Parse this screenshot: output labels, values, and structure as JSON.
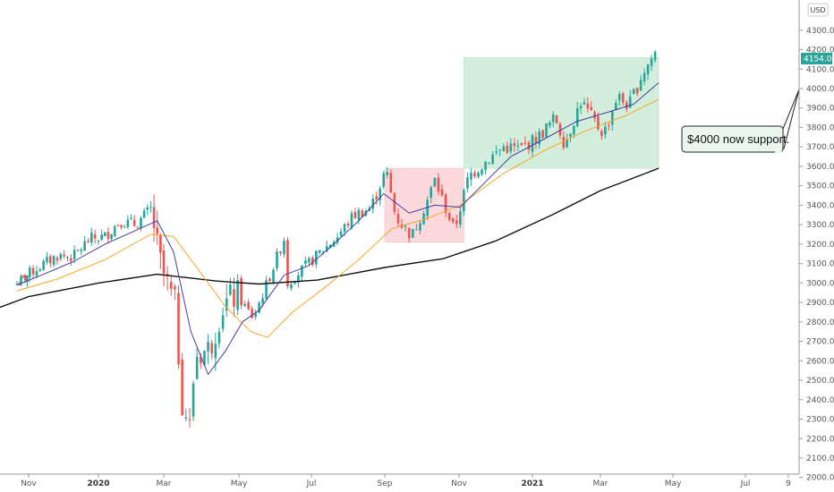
{
  "chart_data": {
    "type": "candlestick",
    "currency": "USD",
    "current_price": "4154.05",
    "colors": {
      "up": "#26a69a",
      "down": "#ef5350",
      "ma_short": "#3f3fa0",
      "ma_mid": "#f5a623",
      "ma_long": "#111111",
      "green_zone": "#d4eedd",
      "red_zone": "#fbd9dc",
      "price_badge": "#26a69a"
    },
    "y_ticks": [
      "4300.00",
      "4200.00",
      "4100.00",
      "4000.00",
      "3900.00",
      "3800.00",
      "3700.00",
      "3600.00",
      "3500.00",
      "3400.00",
      "3300.00",
      "3200.00",
      "3100.00",
      "3000.00",
      "2900.00",
      "2800.00",
      "2700.00",
      "2600.00",
      "2500.00",
      "2400.00",
      "2300.00",
      "2200.00",
      "2100.00",
      "2000.00"
    ],
    "x_ticks": [
      {
        "label": "Nov",
        "bold": false
      },
      {
        "label": "2020",
        "bold": true
      },
      {
        "label": "Mar",
        "bold": false
      },
      {
        "label": "May",
        "bold": false
      },
      {
        "label": "Jul",
        "bold": false
      },
      {
        "label": "Sep",
        "bold": false
      },
      {
        "label": "Nov",
        "bold": false
      },
      {
        "label": "2021",
        "bold": true
      },
      {
        "label": "Mar",
        "bold": false
      },
      {
        "label": "May",
        "bold": false
      },
      {
        "label": "Jul",
        "bold": false
      },
      {
        "label": "9",
        "bold": false
      }
    ],
    "closes": [
      {
        "d": "2019-10-15",
        "v": 2995
      },
      {
        "d": "2019-10-29",
        "v": 3035
      },
      {
        "d": "2019-11-12",
        "v": 3090
      },
      {
        "d": "2019-11-26",
        "v": 3140
      },
      {
        "d": "2019-12-10",
        "v": 3135
      },
      {
        "d": "2019-12-24",
        "v": 3225
      },
      {
        "d": "2020-01-07",
        "v": 3240
      },
      {
        "d": "2020-01-21",
        "v": 3320
      },
      {
        "d": "2020-02-04",
        "v": 3300
      },
      {
        "d": "2020-02-19",
        "v": 3385
      },
      {
        "d": "2020-02-25",
        "v": 3130
      },
      {
        "d": "2020-03-03",
        "v": 3000
      },
      {
        "d": "2020-03-10",
        "v": 2880
      },
      {
        "d": "2020-03-16",
        "v": 2390
      },
      {
        "d": "2020-03-23",
        "v": 2240
      },
      {
        "d": "2020-03-26",
        "v": 2630
      },
      {
        "d": "2020-04-07",
        "v": 2660
      },
      {
        "d": "2020-04-17",
        "v": 2875
      },
      {
        "d": "2020-04-29",
        "v": 2940
      },
      {
        "d": "2020-05-13",
        "v": 2820
      },
      {
        "d": "2020-05-27",
        "v": 3035
      },
      {
        "d": "2020-06-08",
        "v": 3230
      },
      {
        "d": "2020-06-11",
        "v": 3000
      },
      {
        "d": "2020-06-25",
        "v": 3080
      },
      {
        "d": "2020-07-09",
        "v": 3160
      },
      {
        "d": "2020-07-23",
        "v": 3240
      },
      {
        "d": "2020-08-06",
        "v": 3350
      },
      {
        "d": "2020-08-20",
        "v": 3385
      },
      {
        "d": "2020-09-02",
        "v": 3580
      },
      {
        "d": "2020-09-10",
        "v": 3340
      },
      {
        "d": "2020-09-23",
        "v": 3240
      },
      {
        "d": "2020-10-05",
        "v": 3410
      },
      {
        "d": "2020-10-12",
        "v": 3530
      },
      {
        "d": "2020-10-28",
        "v": 3270
      },
      {
        "d": "2020-11-09",
        "v": 3550
      },
      {
        "d": "2020-11-24",
        "v": 3630
      },
      {
        "d": "2020-12-08",
        "v": 3700
      },
      {
        "d": "2020-12-22",
        "v": 3690
      },
      {
        "d": "2021-01-06",
        "v": 3750
      },
      {
        "d": "2021-01-21",
        "v": 3850
      },
      {
        "d": "2021-01-29",
        "v": 3715
      },
      {
        "d": "2021-02-12",
        "v": 3935
      },
      {
        "d": "2021-02-26",
        "v": 3810
      },
      {
        "d": "2021-03-04",
        "v": 3770
      },
      {
        "d": "2021-03-15",
        "v": 3960
      },
      {
        "d": "2021-03-25",
        "v": 3910
      },
      {
        "d": "2021-04-05",
        "v": 4075
      },
      {
        "d": "2021-04-16",
        "v": 4185
      }
    ],
    "ma_short": [
      {
        "d": "2019-10-15",
        "v": 2990
      },
      {
        "d": "2019-11-12",
        "v": 3040
      },
      {
        "d": "2019-12-10",
        "v": 3110
      },
      {
        "d": "2020-01-07",
        "v": 3200
      },
      {
        "d": "2020-02-04",
        "v": 3270
      },
      {
        "d": "2020-02-24",
        "v": 3320
      },
      {
        "d": "2020-03-09",
        "v": 3160
      },
      {
        "d": "2020-03-23",
        "v": 2750
      },
      {
        "d": "2020-04-06",
        "v": 2530
      },
      {
        "d": "2020-04-20",
        "v": 2650
      },
      {
        "d": "2020-05-04",
        "v": 2800
      },
      {
        "d": "2020-05-18",
        "v": 2860
      },
      {
        "d": "2020-06-08",
        "v": 3040
      },
      {
        "d": "2020-06-29",
        "v": 3090
      },
      {
        "d": "2020-07-20",
        "v": 3200
      },
      {
        "d": "2020-08-10",
        "v": 3320
      },
      {
        "d": "2020-08-31",
        "v": 3460
      },
      {
        "d": "2020-09-21",
        "v": 3360
      },
      {
        "d": "2020-10-12",
        "v": 3400
      },
      {
        "d": "2020-11-02",
        "v": 3390
      },
      {
        "d": "2020-11-23",
        "v": 3520
      },
      {
        "d": "2020-12-14",
        "v": 3650
      },
      {
        "d": "2021-01-11",
        "v": 3740
      },
      {
        "d": "2021-02-08",
        "v": 3830
      },
      {
        "d": "2021-03-08",
        "v": 3880
      },
      {
        "d": "2021-03-29",
        "v": 3920
      },
      {
        "d": "2021-04-19",
        "v": 4030
      }
    ],
    "ma_mid": [
      {
        "d": "2019-10-15",
        "v": 2960
      },
      {
        "d": "2019-11-26",
        "v": 3020
      },
      {
        "d": "2020-01-07",
        "v": 3120
      },
      {
        "d": "2020-02-18",
        "v": 3250
      },
      {
        "d": "2020-03-09",
        "v": 3240
      },
      {
        "d": "2020-03-30",
        "v": 3060
      },
      {
        "d": "2020-04-20",
        "v": 2880
      },
      {
        "d": "2020-05-11",
        "v": 2750
      },
      {
        "d": "2020-05-25",
        "v": 2720
      },
      {
        "d": "2020-06-15",
        "v": 2850
      },
      {
        "d": "2020-07-13",
        "v": 2980
      },
      {
        "d": "2020-08-10",
        "v": 3120
      },
      {
        "d": "2020-09-07",
        "v": 3280
      },
      {
        "d": "2020-10-05",
        "v": 3330
      },
      {
        "d": "2020-11-02",
        "v": 3400
      },
      {
        "d": "2020-12-07",
        "v": 3560
      },
      {
        "d": "2021-01-11",
        "v": 3680
      },
      {
        "d": "2021-02-15",
        "v": 3780
      },
      {
        "d": "2021-03-22",
        "v": 3860
      },
      {
        "d": "2021-04-19",
        "v": 3945
      }
    ],
    "ma_long": [
      {
        "d": "2019-09-01",
        "v": 2850
      },
      {
        "d": "2019-11-01",
        "v": 2930
      },
      {
        "d": "2020-01-01",
        "v": 3000
      },
      {
        "d": "2020-02-24",
        "v": 3045
      },
      {
        "d": "2020-04-13",
        "v": 3010
      },
      {
        "d": "2020-05-18",
        "v": 2995
      },
      {
        "d": "2020-07-06",
        "v": 3015
      },
      {
        "d": "2020-09-01",
        "v": 3080
      },
      {
        "d": "2020-10-19",
        "v": 3125
      },
      {
        "d": "2020-12-01",
        "v": 3215
      },
      {
        "d": "2021-01-18",
        "v": 3350
      },
      {
        "d": "2021-03-01",
        "v": 3475
      },
      {
        "d": "2021-04-19",
        "v": 3590
      }
    ],
    "zones": [
      {
        "type": "red",
        "start": "2020-09-01",
        "end": "2020-11-05",
        "low": 3210,
        "high": 3590
      },
      {
        "type": "green",
        "start": "2020-11-05",
        "end": "2021-04-19",
        "low": 3590,
        "high": 4160
      }
    ],
    "annotation": {
      "text": "$4000 now support.",
      "target": "4000.00"
    }
  }
}
